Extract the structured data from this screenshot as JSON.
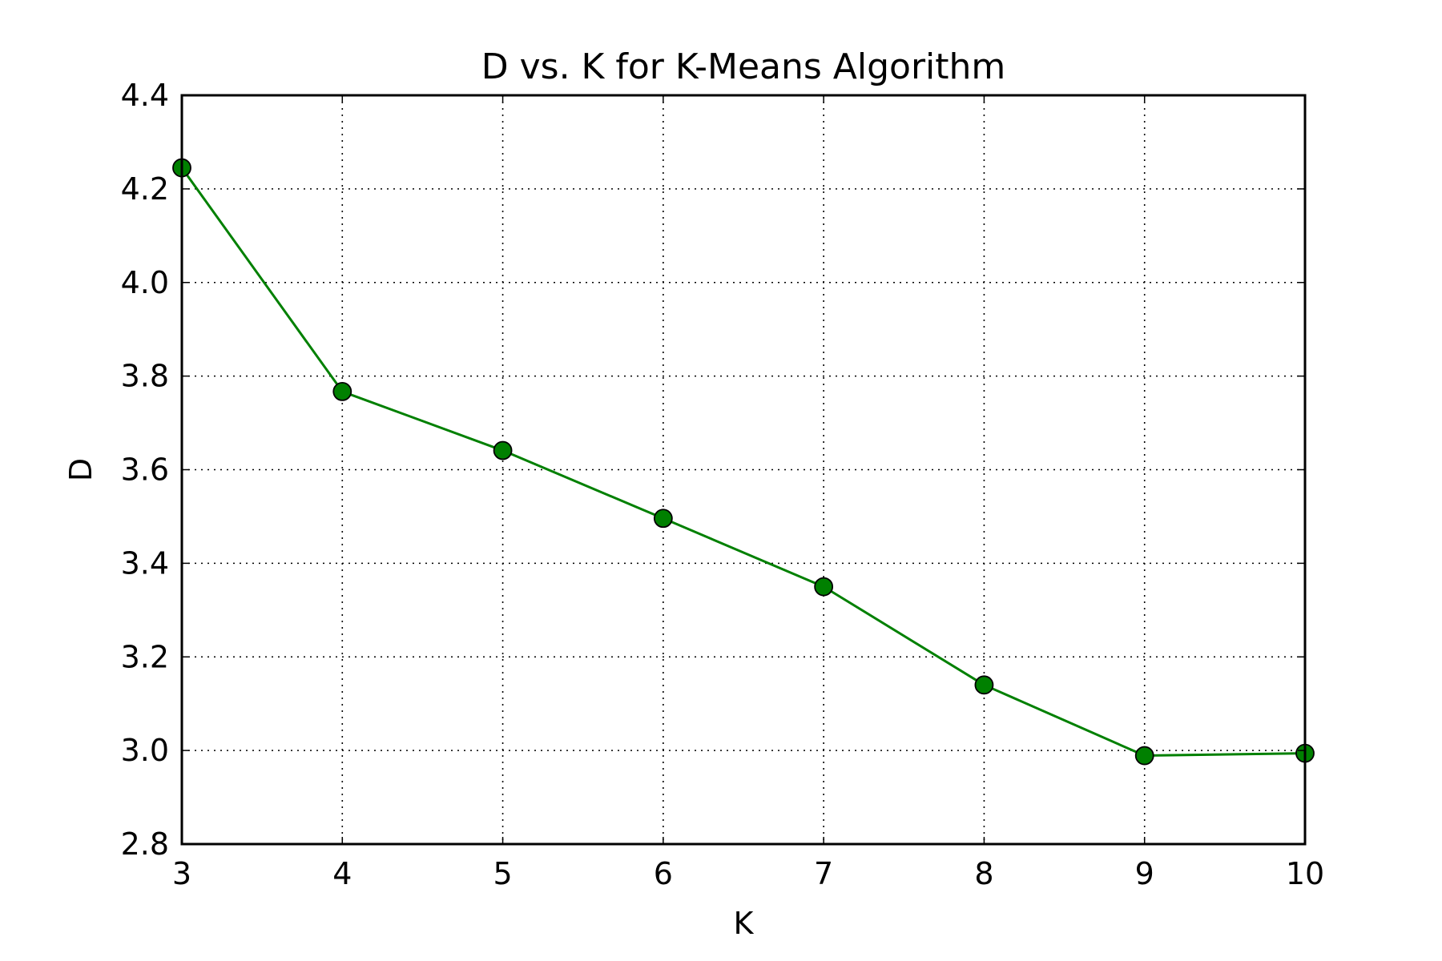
{
  "chart_data": {
    "type": "line",
    "title": "D vs. K for K-Means Algorithm",
    "xlabel": "K",
    "ylabel": "D",
    "xlim": [
      3,
      10
    ],
    "ylim": [
      2.8,
      4.4
    ],
    "xticks": [
      3,
      4,
      5,
      6,
      7,
      8,
      9,
      10
    ],
    "yticks": [
      2.8,
      3.0,
      3.2,
      3.4,
      3.6,
      3.8,
      4.0,
      4.2,
      4.4
    ],
    "xtick_labels": [
      "3",
      "4",
      "5",
      "6",
      "7",
      "8",
      "9",
      "10"
    ],
    "ytick_labels": [
      "2.8",
      "3.0",
      "3.2",
      "3.4",
      "3.6",
      "3.8",
      "4.0",
      "4.2",
      "4.4"
    ],
    "grid": true,
    "series": [
      {
        "x": [
          3,
          4,
          5,
          6,
          7,
          8,
          9,
          10
        ],
        "y": [
          4.245,
          3.767,
          3.641,
          3.496,
          3.35,
          3.14,
          2.989,
          2.994
        ],
        "color": "#008000",
        "marker": "circle"
      }
    ]
  }
}
